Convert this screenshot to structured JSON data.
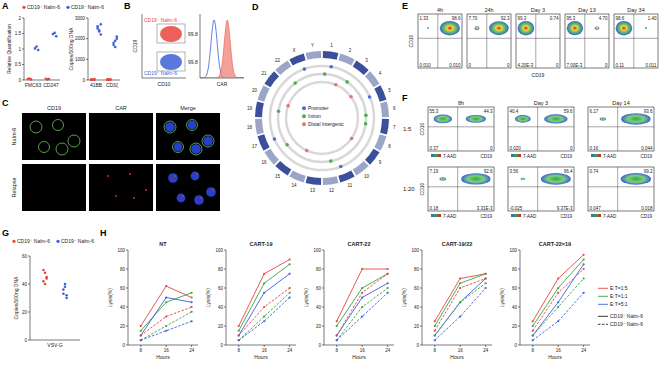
{
  "chart_data": [
    {
      "type": "dot",
      "label": "A",
      "legend": "top",
      "legend_items": [
        {
          "name": "CD19⁺ Nalm-6",
          "color": "#e8453c"
        },
        {
          "name": "CD19⁻ Nalm-6",
          "color": "#3d5fd8"
        }
      ],
      "subplots": [
        {
          "y_label": "Relative Quantification",
          "categories": [
            "FMC63",
            "CD247"
          ],
          "ylim": [
            0,
            2
          ],
          "yticks": [
            0,
            0.5,
            1,
            1.5,
            2
          ],
          "series": [
            {
              "values": [
                [
                  0.03,
                  0.05,
                  0.02
                ],
                [
                  0.04,
                  0.02,
                  0.03
                ]
              ]
            },
            {
              "values": [
                [
                  1.02,
                  1.08,
                  0.97
                ],
                [
                  1.48,
                  1.52,
                  1.41
                ]
              ]
            }
          ]
        },
        {
          "y_label": "Copies/100ng DNA",
          "categories": [
            "41BB",
            "CD3ζ"
          ],
          "ylim": [
            0,
            3000
          ],
          "yticks": [
            0,
            1000,
            2000,
            3000
          ],
          "series": [
            {
              "values": [
                [
                  20,
                  15,
                  30,
                  25,
                  10,
                  18
                ],
                [
                  12,
                  20,
                  25,
                  18,
                  15,
                  22
                ]
              ]
            },
            {
              "values": [
                [
                  2600,
                  2400,
                  2200,
                  2500,
                  2350,
                  2700
                ],
                [
                  1800,
                  1600,
                  2100,
                  1700,
                  1900,
                  2000
                ]
              ]
            }
          ]
        }
      ]
    },
    {
      "type": "flow",
      "label": "B",
      "x_label": "CD10",
      "y_label": "CD19",
      "gates": [
        {
          "name": "CD19⁺ Nalm-6",
          "value": 99.8,
          "color": "#e8453c"
        },
        {
          "name": "CD19⁻ Nalm-6",
          "value": 99.8,
          "color": "#3d5fd8"
        }
      ],
      "histogram": {
        "x_label": "CAR",
        "xlim": [
          0,
          1
        ],
        "series": [
          {
            "type": "line",
            "color": "#3d5fd8",
            "peak": 0.32
          },
          {
            "type": "area",
            "color": "#f08a80",
            "peak": 0.62
          }
        ]
      }
    },
    {
      "type": "image",
      "label": "C",
      "columns": [
        "CD19",
        "CAR",
        "Merge"
      ],
      "rows": [
        "Nalm-6",
        "Relapse"
      ]
    },
    {
      "type": "circos",
      "label": "D",
      "chromosomes": [
        "1",
        "2",
        "3",
        "4",
        "5",
        "6",
        "7",
        "8",
        "9",
        "10",
        "11",
        "12",
        "13",
        "14",
        "15",
        "16",
        "17",
        "18",
        "19",
        "20",
        "21",
        "22",
        "X",
        "Y"
      ],
      "legend_items": [
        {
          "name": "Promoter",
          "color": "#4a6fd4"
        },
        {
          "name": "Intron",
          "color": "#4cae4c"
        },
        {
          "name": "Distal Intergenic",
          "color": "#e57373"
        }
      ],
      "sites": [
        {
          "chromosome": 0,
          "position": 0.2,
          "category": 1
        },
        {
          "chromosome": 0,
          "position": 0.7,
          "category": 0
        },
        {
          "chromosome": 1,
          "position": 0.5,
          "category": 2
        },
        {
          "chromosome": 2,
          "position": 0.3,
          "category": 1
        },
        {
          "chromosome": 3,
          "position": 0.6,
          "category": 2
        },
        {
          "chromosome": 4,
          "position": 0.4,
          "category": 0
        },
        {
          "chromosome": 5,
          "position": 0.8,
          "category": 1
        },
        {
          "chromosome": 6,
          "position": 0.5,
          "category": 1
        },
        {
          "chromosome": 8,
          "position": 0.3,
          "category": 2
        },
        {
          "chromosome": 10,
          "position": 0.6,
          "category": 0
        },
        {
          "chromosome": 11,
          "position": 0.2,
          "category": 1
        },
        {
          "chromosome": 13,
          "position": 0.7,
          "category": 2
        },
        {
          "chromosome": 15,
          "position": 0.5,
          "category": 1
        },
        {
          "chromosome": 16,
          "position": 0.4,
          "category": 0
        },
        {
          "chromosome": 18,
          "position": 0.6,
          "category": 1
        },
        {
          "chromosome": 19,
          "position": 0.3,
          "category": 2
        },
        {
          "chromosome": 21,
          "position": 0.5,
          "category": 1
        },
        {
          "chromosome": 22,
          "position": 0.7,
          "category": 0
        }
      ]
    },
    {
      "type": "flow",
      "label": "E",
      "x_label": "CD19",
      "y_label": "CD10",
      "plots": [
        {
          "title": "4h",
          "values": [
            1.33,
            98.6,
            0.01,
            0.01
          ],
          "value_labels": [
            "1.33",
            "98.6",
            "0.010",
            "0.010"
          ]
        },
        {
          "title": "24h",
          "values": [
            7.7,
            92.3,
            0,
            0
          ],
          "value_labels": [
            "7.70",
            "92.3",
            "0",
            "0"
          ]
        },
        {
          "title": "Day 3",
          "values": [
            99.3,
            0.74,
            0.0042,
            0
          ],
          "value_labels": [
            "99.3",
            "0.74",
            "4.20E-3",
            "0"
          ]
        },
        {
          "title": "Day 13",
          "values": [
            95.3,
            4.7,
            0.007,
            0
          ],
          "value_labels": [
            "95.3",
            "4.70",
            "7.00E-3",
            "0"
          ]
        },
        {
          "title": "Day 34",
          "values": [
            98.6,
            1.4,
            0.11,
            0.011
          ],
          "value_labels": [
            "98.6",
            "1.40",
            "0.11",
            "0.011"
          ]
        }
      ]
    },
    {
      "type": "flow",
      "label": "F",
      "x_label": "CD19",
      "y_label": "CD10",
      "color_label": "7-AAD",
      "columns": [
        "8h",
        "Day 3",
        "Day 14"
      ],
      "rows": [
        {
          "name": "1:5",
          "plots": [
            {
              "values": [
                55.3,
                44.3,
                0.37,
                0
              ],
              "value_labels": [
                "55.3",
                "44.3",
                "0.37",
                "0"
              ]
            },
            {
              "values": [
                40.4,
                59.6,
                0.02,
                0
              ],
              "value_labels": [
                "40.4",
                "59.6",
                "0.020",
                "0"
              ]
            },
            {
              "values": [
                6.17,
                93.6,
                0.16,
                0.044
              ],
              "value_labels": [
                "6.17",
                "93.6",
                "0.16",
                "0.044"
              ]
            }
          ]
        },
        {
          "name": "1:20",
          "plots": [
            {
              "values": [
                7.19,
                92.6,
                0.18,
                0.00331
              ],
              "value_labels": [
                "7.19",
                "92.6",
                "0.18",
                "3.31E-3"
              ]
            },
            {
              "values": [
                3.56,
                96.4,
                -0.025,
                0.00937
              ],
              "value_labels": [
                "3.56",
                "96.4",
                "-0.025",
                "9.37E-3"
              ]
            },
            {
              "values": [
                0.74,
                99.2,
                0.047,
                0.018
              ],
              "value_labels": [
                "0.74",
                "99.2",
                "0.047",
                "0.018"
              ]
            }
          ]
        }
      ]
    },
    {
      "type": "dot",
      "label": "G",
      "legend": "top",
      "legend_items": [
        {
          "name": "CD19⁺ Nalm-6",
          "color": "#e8453c"
        },
        {
          "name": "CD19⁻ Nalm-6",
          "color": "#3d5fd8"
        }
      ],
      "subplots": [
        {
          "y_label": "Copies/100ng DNA",
          "categories": [
            "VSV-G"
          ],
          "ylim": [
            0,
            60
          ],
          "yticks": [
            0,
            20,
            40,
            60
          ],
          "series": [
            {
              "values": [
                [
                  42,
                  48,
                  45,
                  50,
                  40,
                  44
                ]
              ]
            },
            {
              "values": [
                [
                  33,
                  38,
                  30,
                  36,
                  40,
                  32
                ]
              ]
            }
          ]
        }
      ]
    },
    {
      "type": "line",
      "label": "H",
      "x_label": "Hours",
      "y_label": "Lysis(%)",
      "x": [
        8,
        16,
        24
      ],
      "xlim": [
        4,
        26
      ],
      "xticks": [
        8,
        16,
        24
      ],
      "ylim": [
        0,
        100
      ],
      "yticks": [
        0,
        20,
        40,
        60,
        80,
        100
      ],
      "marker": "circle",
      "legend": "right",
      "legend_items": [
        {
          "name": "E:T=1:5",
          "color": "#e8453c"
        },
        {
          "name": "E:T=1:1",
          "color": "#3aa34a"
        },
        {
          "name": "E:T=5:1",
          "color": "#3d5fd8"
        },
        {
          "name": "CD19⁺ Nalm-6",
          "line_style": "solid"
        },
        {
          "name": "CD19⁻ Nalm-6",
          "line_style": "dashed"
        }
      ],
      "charts": [
        {
          "title": "NT",
          "series": [
            {
              "color": "#e8453c",
              "line_style": "solid",
              "values": [
                20,
                62,
                50
              ]
            },
            {
              "color": "#3aa34a",
              "line_style": "solid",
              "values": [
                15,
                45,
                55
              ]
            },
            {
              "color": "#3d5fd8",
              "line_style": "solid",
              "values": [
                10,
                50,
                45
              ]
            },
            {
              "color": "#e8453c",
              "line_style": "dashed",
              "values": [
                10,
                30,
                40
              ]
            },
            {
              "color": "#3aa34a",
              "line_style": "dashed",
              "values": [
                5,
                20,
                35
              ]
            },
            {
              "color": "#3d5fd8",
              "line_style": "dashed",
              "values": [
                5,
                15,
                25
              ]
            }
          ]
        },
        {
          "title": "CART-19",
          "series": [
            {
              "color": "#e8453c",
              "line_style": "solid",
              "values": [
                20,
                75,
                90
              ]
            },
            {
              "color": "#3aa34a",
              "line_style": "solid",
              "values": [
                15,
                65,
                85
              ]
            },
            {
              "color": "#3d5fd8",
              "line_style": "solid",
              "values": [
                10,
                55,
                75
              ]
            },
            {
              "color": "#e8453c",
              "line_style": "dashed",
              "values": [
                10,
                40,
                60
              ]
            },
            {
              "color": "#3aa34a",
              "line_style": "dashed",
              "values": [
                5,
                30,
                55
              ]
            },
            {
              "color": "#3d5fd8",
              "line_style": "dashed",
              "values": [
                5,
                25,
                50
              ]
            }
          ]
        },
        {
          "title": "CART-22",
          "series": [
            {
              "color": "#e8453c",
              "line_style": "solid",
              "values": [
                25,
                80,
                80
              ]
            },
            {
              "color": "#3aa34a",
              "line_style": "solid",
              "values": [
                20,
                60,
                75
              ]
            },
            {
              "color": "#3d5fd8",
              "line_style": "solid",
              "values": [
                10,
                50,
                65
              ]
            },
            {
              "color": "#e8453c",
              "line_style": "dashed",
              "values": [
                10,
                55,
                75
              ]
            },
            {
              "color": "#3aa34a",
              "line_style": "dashed",
              "values": [
                5,
                40,
                60
              ]
            },
            {
              "color": "#3d5fd8",
              "line_style": "dashed",
              "values": [
                5,
                30,
                55
              ]
            }
          ]
        },
        {
          "title": "CART-19/22",
          "series": [
            {
              "color": "#e8453c",
              "line_style": "solid",
              "values": [
                25,
                70,
                75
              ]
            },
            {
              "color": "#3aa34a",
              "line_style": "solid",
              "values": [
                20,
                65,
                75
              ]
            },
            {
              "color": "#3d5fd8",
              "line_style": "solid",
              "values": [
                10,
                45,
                70
              ]
            },
            {
              "color": "#e8453c",
              "line_style": "dashed",
              "values": [
                15,
                60,
                70
              ]
            },
            {
              "color": "#3aa34a",
              "line_style": "dashed",
              "values": [
                10,
                45,
                65
              ]
            },
            {
              "color": "#3d5fd8",
              "line_style": "dashed",
              "values": [
                5,
                30,
                60
              ]
            }
          ]
        },
        {
          "title": "CART-22×19",
          "series": [
            {
              "color": "#e8453c",
              "line_style": "solid",
              "values": [
                25,
                70,
                95
              ]
            },
            {
              "color": "#3aa34a",
              "line_style": "solid",
              "values": [
                20,
                60,
                90
              ]
            },
            {
              "color": "#3d5fd8",
              "line_style": "solid",
              "values": [
                10,
                45,
                85
              ]
            },
            {
              "color": "#e8453c",
              "line_style": "dashed",
              "values": [
                15,
                55,
                80
              ]
            },
            {
              "color": "#3aa34a",
              "line_style": "dashed",
              "values": [
                10,
                40,
                70
              ]
            },
            {
              "color": "#3d5fd8",
              "line_style": "dashed",
              "values": [
                5,
                25,
                55
              ]
            }
          ]
        }
      ]
    }
  ]
}
